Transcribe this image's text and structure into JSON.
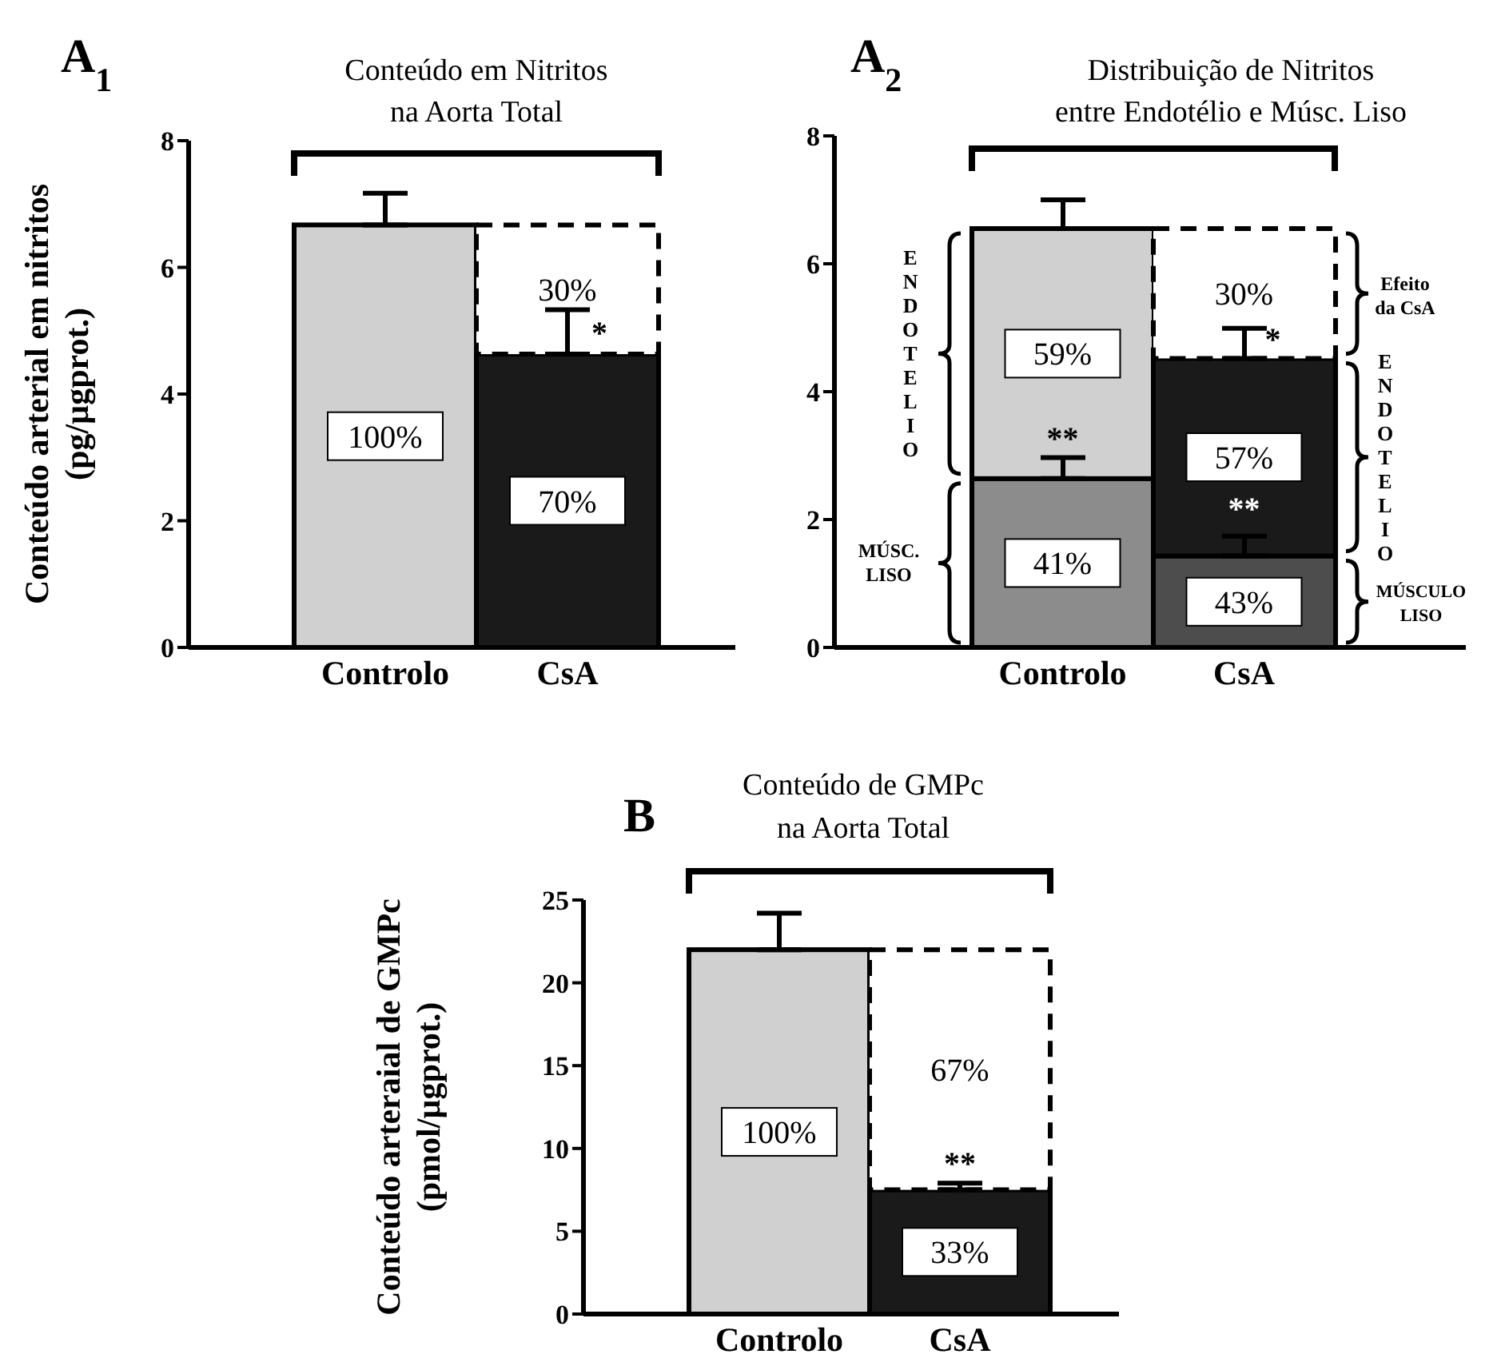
{
  "chart_data": [
    {
      "type": "bar",
      "stacked": true,
      "title": "Conteúdo em Nitritos\nna Aorta Total",
      "ylabel": "Conteúdo arterial em nitritos\n(pg/µgprot.)",
      "categories": [
        "Controlo",
        "CsA"
      ],
      "ylim": [
        0,
        8
      ],
      "yticks": [
        0,
        2,
        4,
        6,
        8
      ],
      "series": [
        {
          "colors": [
            "#d0d0d0",
            "#1a1a1a"
          ],
          "values": [
            6.67,
            4.63
          ],
          "errors": [
            [
              6.67,
              7.17
            ],
            [
              4.63,
              5.33
            ]
          ]
        },
        {
          "color": "#ffffff",
          "line_style": "dashed",
          "values": [
            null,
            2.04
          ]
        }
      ],
      "annotations": [
        "A$_{1}$",
        "*",
        "100%",
        "70%",
        "30%"
      ]
    },
    {
      "type": "bar",
      "stacked": true,
      "title": "Distribuição de Nitritos\nentre Endotélio e Músc. Liso",
      "categories": [
        "Controlo",
        "CsA"
      ],
      "ylim": [
        0,
        8
      ],
      "yticks": [
        0,
        2,
        4,
        6,
        8
      ],
      "series": [
        {
          "colors": [
            "#8c8c8c",
            "#4d4d4d"
          ],
          "values": [
            2.64,
            1.43
          ],
          "errors": [
            [
              2.64,
              2.97
            ],
            [
              1.43,
              1.74
            ]
          ]
        },
        {
          "colors": [
            "#d0d0d0",
            "#1a1a1a"
          ],
          "values": [
            3.91,
            3.09
          ],
          "errors": [
            [
              6.55,
              7.0
            ],
            [
              4.52,
              4.99
            ]
          ]
        },
        {
          "color": "#ffffff",
          "line_style": "dashed",
          "values": [
            null,
            2.03
          ]
        }
      ],
      "annotations": [
        "A$_{2}$",
        "**",
        "*",
        "**",
        "ENDOTELIO",
        "MÚSC.\nLISO",
        "Efeito\nda CsA",
        "ENDOTELIO",
        "MÚSCULO\nLISO",
        "41%",
        "43%",
        "59%",
        "57%",
        "30%"
      ]
    },
    {
      "type": "bar",
      "stacked": true,
      "title": "Conteúdo de GMPc\nna Aorta Total",
      "ylabel": "Conteúdo arteraial de GMPc\n(pmol/µgprot.)",
      "categories": [
        "Controlo",
        "CsA"
      ],
      "ylim": [
        0,
        25
      ],
      "yticks": [
        0,
        5,
        10,
        15,
        20,
        25
      ],
      "series": [
        {
          "colors": [
            "#d0d0d0",
            "#1a1a1a"
          ],
          "values": [
            22.0,
            7.5
          ],
          "errors": [
            [
              22.0,
              24.2
            ],
            [
              7.5,
              7.9
            ]
          ]
        },
        {
          "color": "#ffffff",
          "line_style": "dashed",
          "values": [
            null,
            14.5
          ]
        }
      ],
      "annotations": [
        "B",
        "**",
        "100%",
        "33%",
        "67%"
      ]
    }
  ]
}
